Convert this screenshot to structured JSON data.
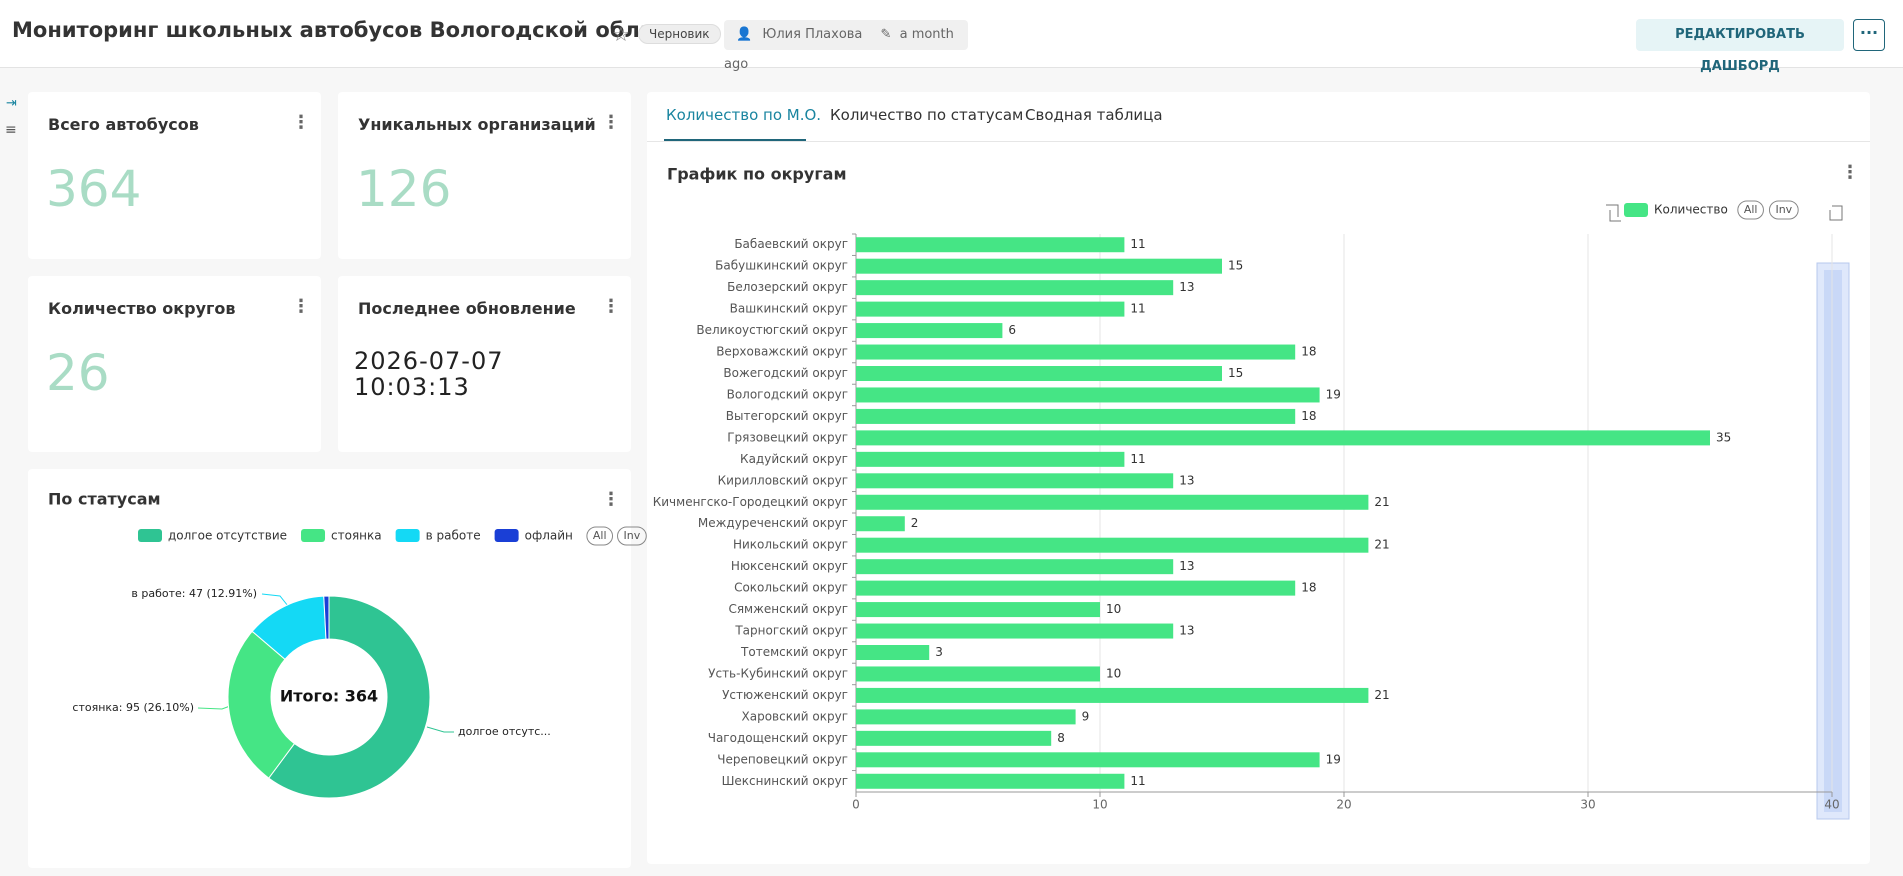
{
  "header": {
    "title": "Мониторинг школьных автобусов Вологодской области",
    "status": "Черновик",
    "owner": "Юлия Плахова",
    "modified": "a month ago",
    "edit_button": "РЕДАКТИРОВАТЬ ДАШБОРД"
  },
  "cards": [
    {
      "title": "Всего автобусов",
      "value": 364
    },
    {
      "title": "Уникальных организаций",
      "value": 126
    },
    {
      "title": "Количество округов",
      "value": 26
    },
    {
      "title": "Последнее обновление",
      "value": "2026-07-07 10:03:13"
    }
  ],
  "tabs": [
    "Количество по М.О.",
    "Количество по статусам",
    "Сводная таблица"
  ],
  "chart_data": [
    {
      "type": "pie",
      "title": "По статусам",
      "categories": [
        "долгое отсутствие",
        "стоянка",
        "в работе",
        "офлайн"
      ],
      "values": [
        219,
        95,
        47,
        3
      ],
      "colors": [
        "#2fc493",
        "#45e585",
        "#14d9f5",
        "#1a3fd6"
      ],
      "value_labels": [
        "долгое отсутс...",
        "стоянка: 95 (26.10%)",
        "в работе: 47 (12.91%)",
        null
      ],
      "center_label": "Итого: 364",
      "legend_buttons": [
        "All",
        "Inv"
      ]
    },
    {
      "type": "bar",
      "orientation": "horizontal",
      "title": "График по округам",
      "categories": [
        "Бабаевский округ",
        "Бабушкинский округ",
        "Белозерский округ",
        "Вашкинский округ",
        "Великоустюгский округ",
        "Верховажский округ",
        "Вожегодский округ",
        "Вологодский округ",
        "Вытегорский округ",
        "Грязовецкий округ",
        "Кадуйский округ",
        "Кирилловский округ",
        "Кичменгско-Городецкий округ",
        "Междуреченский округ",
        "Никольский округ",
        "Нюксенский округ",
        "Сокольский округ",
        "Сямженский округ",
        "Тарногский округ",
        "Тотемский округ",
        "Усть-Кубинский округ",
        "Устюженский округ",
        "Харовский округ",
        "Чагодощенский округ",
        "Череповецкий округ",
        "Шекснинский округ"
      ],
      "series": [
        {
          "name": "Количество",
          "color": "#45e585",
          "values": [
            11,
            15,
            13,
            11,
            6,
            18,
            15,
            19,
            18,
            35,
            11,
            13,
            21,
            2,
            21,
            13,
            18,
            10,
            13,
            3,
            10,
            21,
            9,
            8,
            19,
            11
          ]
        }
      ],
      "xlim": [
        0,
        40
      ],
      "xticks": [
        0,
        10,
        20,
        30,
        40
      ],
      "grid": true,
      "legend_buttons": [
        "All",
        "Inv"
      ]
    }
  ]
}
